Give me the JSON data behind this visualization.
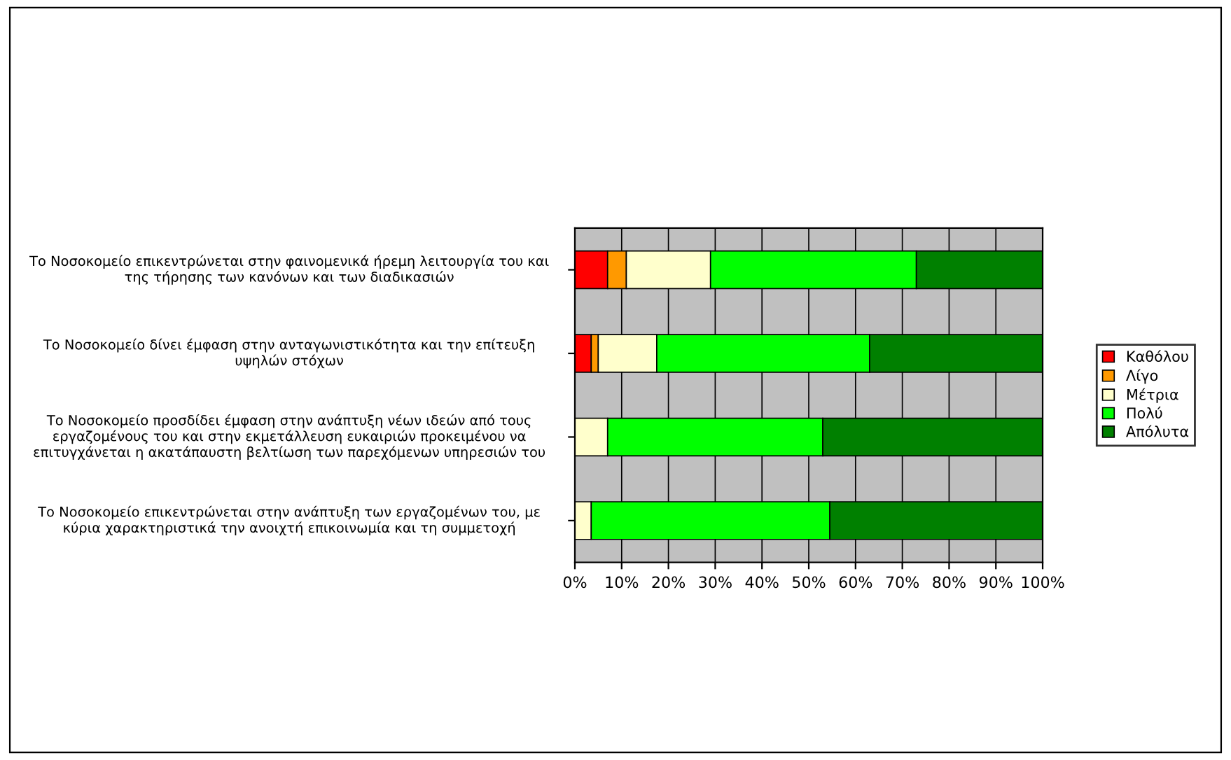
{
  "chart_data": {
    "type": "bar",
    "orientation": "horizontal",
    "stacked": true,
    "categories": [
      "Το Νοσοκομείο επικεντρώνεται στην φαινομενικά ήρεμη λειτουργία του και της τήρησης των κανόνων και των διαδικασιών",
      "Το Νοσοκομείο δίνει έμφαση στην ανταγωνιστικότητα και την επίτευξη υψηλών στόχων",
      "Το Νοσοκομείο προσδίδει έμφαση στην ανάπτυξη νέων ιδεών από τους εργαζομένους του και στην εκμετάλλευση ευκαιριών προκειμένου να επιτυγχάνεται η ακατάπαυστη βελτίωση των παρεχόμενων υπηρεσιών του",
      "Το Νοσοκομείο επικεντρώνεται στην ανάπτυξη των εργαζομένων του, με κύρια χαρακτηριστικά την ανοιχτή επικοινωμία και τη συμμετοχή"
    ],
    "series": [
      {
        "name": "Καθόλου",
        "color": "#ff0000",
        "values": [
          7,
          3.5,
          0,
          0
        ]
      },
      {
        "name": "Λίγο",
        "color": "#ff9900",
        "values": [
          4,
          1.5,
          0,
          0
        ]
      },
      {
        "name": "Μέτρια",
        "color": "#ffffcc",
        "values": [
          18,
          12.5,
          7,
          3.5
        ]
      },
      {
        "name": "Πολύ",
        "color": "#00ff00",
        "values": [
          44,
          45.5,
          46,
          51
        ]
      },
      {
        "name": "Απόλυτα",
        "color": "#008000",
        "values": [
          27,
          37,
          47,
          45.5
        ]
      }
    ],
    "xlim": [
      0,
      100
    ],
    "xticks": [
      {
        "value": 0,
        "label": "0%"
      },
      {
        "value": 10,
        "label": "10%"
      },
      {
        "value": 20,
        "label": "20%"
      },
      {
        "value": 30,
        "label": "30%"
      },
      {
        "value": 40,
        "label": "40%"
      },
      {
        "value": 50,
        "label": "50%"
      },
      {
        "value": 60,
        "label": "60%"
      },
      {
        "value": 70,
        "label": "70%"
      },
      {
        "value": 80,
        "label": "80%"
      },
      {
        "value": 90,
        "label": "90%"
      },
      {
        "value": 100,
        "label": "100%"
      }
    ],
    "grid": "x",
    "legend": "right"
  }
}
